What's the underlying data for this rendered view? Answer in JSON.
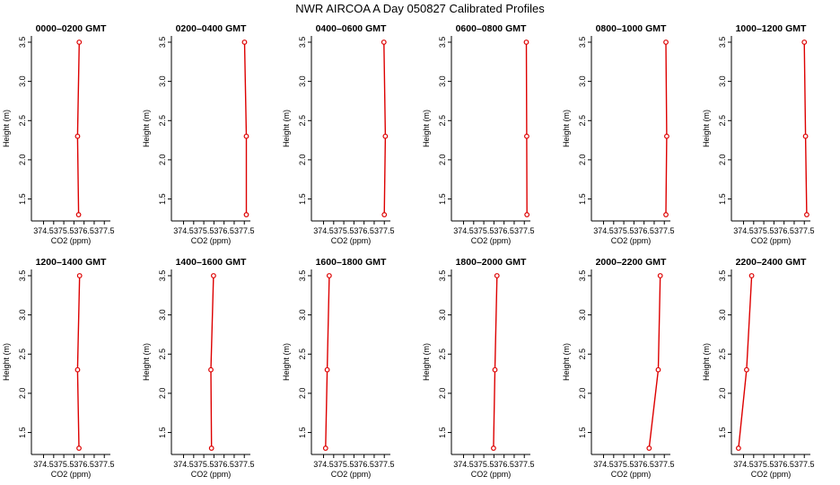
{
  "figure": {
    "title": "NWR AIRCOA A  Day 050827  Calibrated Profiles"
  },
  "chart_data": [
    {
      "type": "line",
      "title": "0000–0200 GMT",
      "xlabel": "CO2 (ppm)",
      "ylabel": "Height (m)",
      "xlim": [
        373.9,
        377.8
      ],
      "ylim": [
        1.22,
        3.58
      ],
      "xticks": [
        "374.5",
        "375.0",
        "375.5",
        "376.0",
        "376.5",
        "377.0",
        "377.5"
      ],
      "yticks": [
        "1.5",
        "2.0",
        "2.5",
        "3.0",
        "3.5"
      ],
      "series": [
        {
          "color": "#dd0000",
          "points": [
            {
              "x": 376.26,
              "y": 3.5
            },
            {
              "x": 376.18,
              "y": 2.3
            },
            {
              "x": 376.23,
              "y": 1.3
            }
          ]
        }
      ]
    },
    {
      "type": "line",
      "title": "0200–0400 GMT",
      "xlabel": "CO2 (ppm)",
      "ylabel": "Height (m)",
      "xlim": [
        373.9,
        377.8
      ],
      "ylim": [
        1.22,
        3.58
      ],
      "xticks": [
        "374.5",
        "375.0",
        "375.5",
        "376.0",
        "376.5",
        "377.0",
        "377.5"
      ],
      "yticks": [
        "1.5",
        "2.0",
        "2.5",
        "3.0",
        "3.5"
      ],
      "series": [
        {
          "color": "#dd0000",
          "points": [
            {
              "x": 377.51,
              "y": 3.5
            },
            {
              "x": 377.6,
              "y": 2.3
            },
            {
              "x": 377.6,
              "y": 1.3
            }
          ]
        }
      ]
    },
    {
      "type": "line",
      "title": "0400–0600 GMT",
      "xlabel": "CO2 (ppm)",
      "ylabel": "Height (m)",
      "xlim": [
        373.9,
        377.8
      ],
      "ylim": [
        1.22,
        3.58
      ],
      "xticks": [
        "374.5",
        "375.0",
        "375.5",
        "376.0",
        "376.5",
        "377.0",
        "377.5"
      ],
      "yticks": [
        "1.5",
        "2.0",
        "2.5",
        "3.0",
        "3.5"
      ],
      "series": [
        {
          "color": "#dd0000",
          "points": [
            {
              "x": 377.48,
              "y": 3.5
            },
            {
              "x": 377.55,
              "y": 2.3
            },
            {
              "x": 377.5,
              "y": 1.3
            }
          ]
        }
      ]
    },
    {
      "type": "line",
      "title": "0600–0800 GMT",
      "xlabel": "CO2 (ppm)",
      "ylabel": "Height (m)",
      "xlim": [
        373.9,
        377.8
      ],
      "ylim": [
        1.22,
        3.58
      ],
      "xticks": [
        "374.5",
        "375.0",
        "375.5",
        "376.0",
        "376.5",
        "377.0",
        "377.5"
      ],
      "yticks": [
        "1.5",
        "2.0",
        "2.5",
        "3.0",
        "3.5"
      ],
      "series": [
        {
          "color": "#dd0000",
          "points": [
            {
              "x": 377.6,
              "y": 3.5
            },
            {
              "x": 377.62,
              "y": 2.3
            },
            {
              "x": 377.63,
              "y": 1.3
            }
          ]
        }
      ]
    },
    {
      "type": "line",
      "title": "0800–1000 GMT",
      "xlabel": "CO2 (ppm)",
      "ylabel": "Height (m)",
      "xlim": [
        373.9,
        377.8
      ],
      "ylim": [
        1.22,
        3.58
      ],
      "xticks": [
        "374.5",
        "375.0",
        "375.5",
        "376.0",
        "376.5",
        "377.0",
        "377.5"
      ],
      "yticks": [
        "1.5",
        "2.0",
        "2.5",
        "3.0",
        "3.5"
      ],
      "series": [
        {
          "color": "#dd0000",
          "points": [
            {
              "x": 377.58,
              "y": 3.5
            },
            {
              "x": 377.62,
              "y": 2.3
            },
            {
              "x": 377.58,
              "y": 1.3
            }
          ]
        }
      ]
    },
    {
      "type": "line",
      "title": "1000–1200 GMT",
      "xlabel": "CO2 (ppm)",
      "ylabel": "Height (m)",
      "xlim": [
        373.9,
        377.8
      ],
      "ylim": [
        1.22,
        3.58
      ],
      "xticks": [
        "374.5",
        "375.0",
        "375.5",
        "376.0",
        "376.5",
        "377.0",
        "377.5"
      ],
      "yticks": [
        "1.5",
        "2.0",
        "2.5",
        "3.0",
        "3.5"
      ],
      "series": [
        {
          "color": "#dd0000",
          "points": [
            {
              "x": 377.5,
              "y": 3.5
            },
            {
              "x": 377.56,
              "y": 2.3
            },
            {
              "x": 377.62,
              "y": 1.3
            }
          ]
        }
      ]
    },
    {
      "type": "line",
      "title": "1200–1400 GMT",
      "xlabel": "CO2 (ppm)",
      "ylabel": "Height (m)",
      "xlim": [
        373.9,
        377.8
      ],
      "ylim": [
        1.22,
        3.58
      ],
      "xticks": [
        "374.5",
        "375.0",
        "375.5",
        "376.0",
        "376.5",
        "377.0",
        "377.5"
      ],
      "yticks": [
        "1.5",
        "2.0",
        "2.5",
        "3.0",
        "3.5"
      ],
      "series": [
        {
          "color": "#dd0000",
          "points": [
            {
              "x": 376.28,
              "y": 3.5
            },
            {
              "x": 376.18,
              "y": 2.3
            },
            {
              "x": 376.25,
              "y": 1.3
            }
          ]
        }
      ]
    },
    {
      "type": "line",
      "title": "1400–1600 GMT",
      "xlabel": "CO2 (ppm)",
      "ylabel": "Height (m)",
      "xlim": [
        373.9,
        377.8
      ],
      "ylim": [
        1.22,
        3.58
      ],
      "xticks": [
        "374.5",
        "375.0",
        "375.5",
        "376.0",
        "376.5",
        "377.0",
        "377.5"
      ],
      "yticks": [
        "1.5",
        "2.0",
        "2.5",
        "3.0",
        "3.5"
      ],
      "series": [
        {
          "color": "#dd0000",
          "points": [
            {
              "x": 375.98,
              "y": 3.5
            },
            {
              "x": 375.85,
              "y": 2.3
            },
            {
              "x": 375.88,
              "y": 1.3
            }
          ]
        }
      ]
    },
    {
      "type": "line",
      "title": "1600–1800 GMT",
      "xlabel": "CO2 (ppm)",
      "ylabel": "Height (m)",
      "xlim": [
        373.9,
        377.8
      ],
      "ylim": [
        1.22,
        3.58
      ],
      "xticks": [
        "374.5",
        "375.0",
        "375.5",
        "376.0",
        "376.5",
        "377.0",
        "377.5"
      ],
      "yticks": [
        "1.5",
        "2.0",
        "2.5",
        "3.0",
        "3.5"
      ],
      "series": [
        {
          "color": "#dd0000",
          "points": [
            {
              "x": 374.78,
              "y": 3.5
            },
            {
              "x": 374.68,
              "y": 2.3
            },
            {
              "x": 374.6,
              "y": 1.3
            }
          ]
        }
      ]
    },
    {
      "type": "line",
      "title": "1800–2000 GMT",
      "xlabel": "CO2 (ppm)",
      "ylabel": "Height (m)",
      "xlim": [
        373.9,
        377.8
      ],
      "ylim": [
        1.22,
        3.58
      ],
      "xticks": [
        "374.5",
        "375.0",
        "375.5",
        "376.0",
        "376.5",
        "377.0",
        "377.5"
      ],
      "yticks": [
        "1.5",
        "2.0",
        "2.5",
        "3.0",
        "3.5"
      ],
      "series": [
        {
          "color": "#dd0000",
          "points": [
            {
              "x": 376.15,
              "y": 3.5
            },
            {
              "x": 376.05,
              "y": 2.3
            },
            {
              "x": 375.98,
              "y": 1.3
            }
          ]
        }
      ]
    },
    {
      "type": "line",
      "title": "2000–2200 GMT",
      "xlabel": "CO2 (ppm)",
      "ylabel": "Height (m)",
      "xlim": [
        373.9,
        377.8
      ],
      "ylim": [
        1.22,
        3.58
      ],
      "xticks": [
        "374.5",
        "375.0",
        "375.5",
        "376.0",
        "376.5",
        "377.0",
        "377.5"
      ],
      "yticks": [
        "1.5",
        "2.0",
        "2.5",
        "3.0",
        "3.5"
      ],
      "series": [
        {
          "color": "#dd0000",
          "points": [
            {
              "x": 377.3,
              "y": 3.5
            },
            {
              "x": 377.2,
              "y": 2.3
            },
            {
              "x": 376.75,
              "y": 1.3
            }
          ]
        }
      ]
    },
    {
      "type": "line",
      "title": "2200–2400 GMT",
      "xlabel": "CO2 (ppm)",
      "ylabel": "Height (m)",
      "xlim": [
        373.9,
        377.8
      ],
      "ylim": [
        1.22,
        3.58
      ],
      "xticks": [
        "374.5",
        "375.0",
        "375.5",
        "376.0",
        "376.5",
        "377.0",
        "377.5"
      ],
      "yticks": [
        "1.5",
        "2.0",
        "2.5",
        "3.0",
        "3.5"
      ],
      "series": [
        {
          "color": "#dd0000",
          "points": [
            {
              "x": 374.9,
              "y": 3.5
            },
            {
              "x": 374.65,
              "y": 2.3
            },
            {
              "x": 374.25,
              "y": 1.3
            }
          ]
        }
      ]
    }
  ]
}
